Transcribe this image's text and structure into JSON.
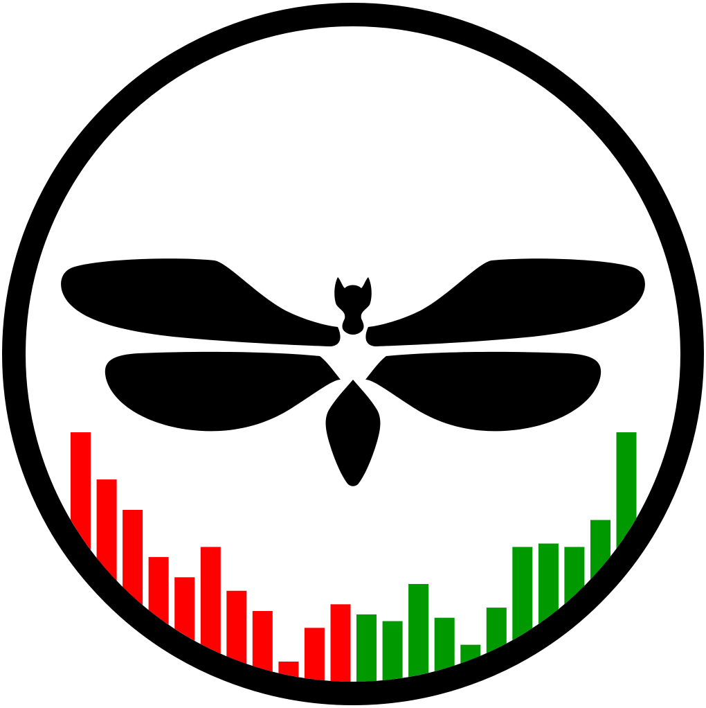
{
  "logo": {
    "ring_color": "#000000",
    "background_color": "#ffffff",
    "insect_icon": "moth-silhouette-icon",
    "insect_color": "#000000",
    "bars": {
      "decline_color": "#ff0000",
      "rise_color": "#009900",
      "red_levels": [
        1.0,
        0.86,
        0.77,
        0.63,
        0.57,
        0.66,
        0.53,
        0.47,
        0.32,
        0.42,
        0.49
      ],
      "green_levels": [
        0.46,
        0.44,
        0.55,
        0.45,
        0.37,
        0.48,
        0.66,
        0.67,
        0.66,
        0.74,
        1.0
      ]
    }
  }
}
